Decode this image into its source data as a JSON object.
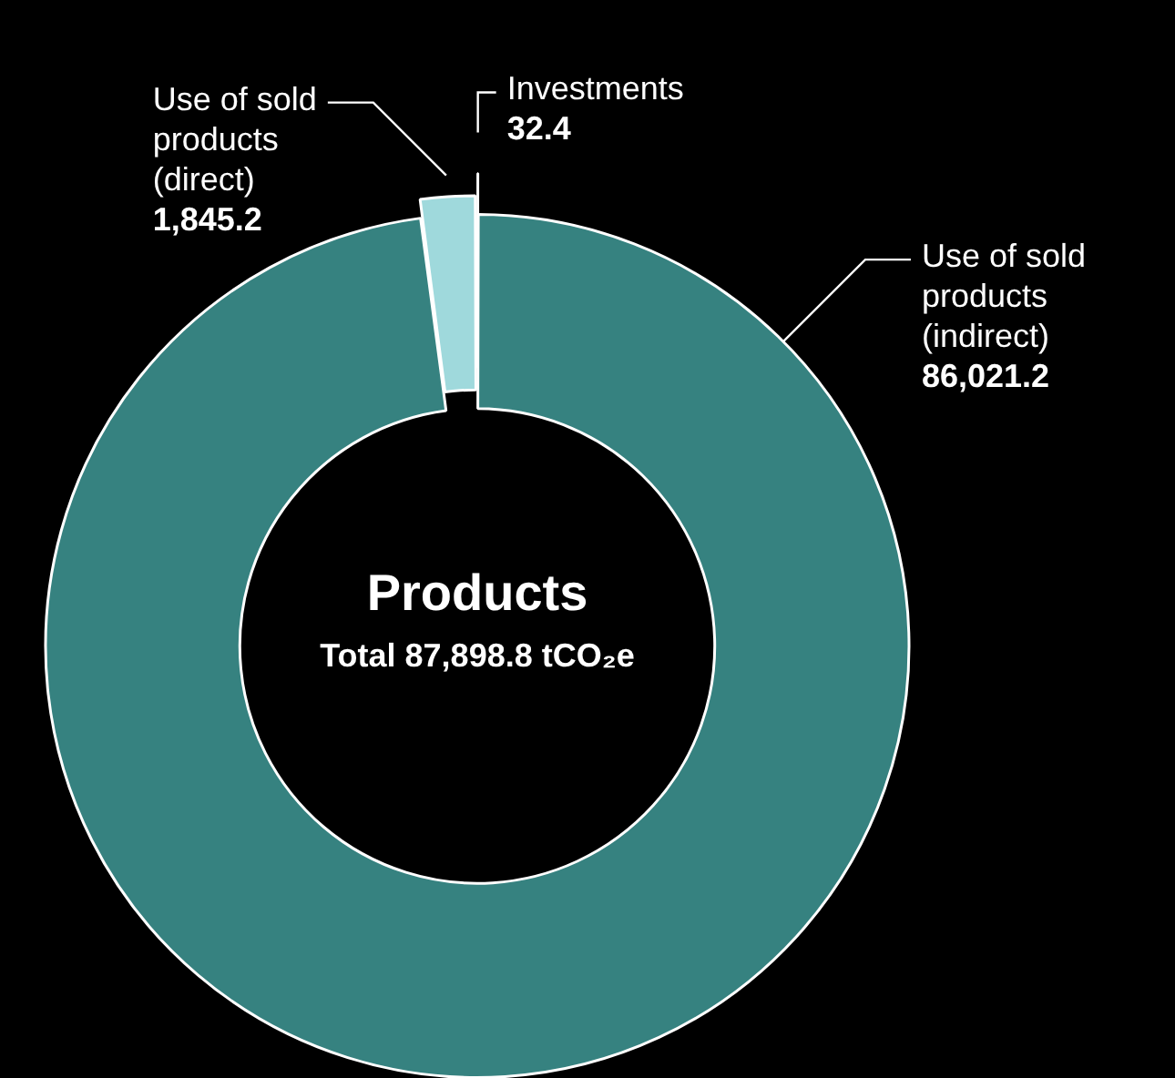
{
  "chart_data": {
    "type": "donut",
    "title": "Products",
    "subtitle": "Total 87,898.8 tCO₂e",
    "categories": [
      "Investments",
      "Use of sold products (indirect)",
      "Use of sold products (direct)"
    ],
    "values": [
      32.4,
      86021.2,
      1845.2
    ],
    "value_labels": [
      "32.4",
      "86,021.2",
      "1,845.2"
    ],
    "colors": [
      "#d8f2f3",
      "#368280",
      "#9fd9dc"
    ],
    "legend": false
  }
}
